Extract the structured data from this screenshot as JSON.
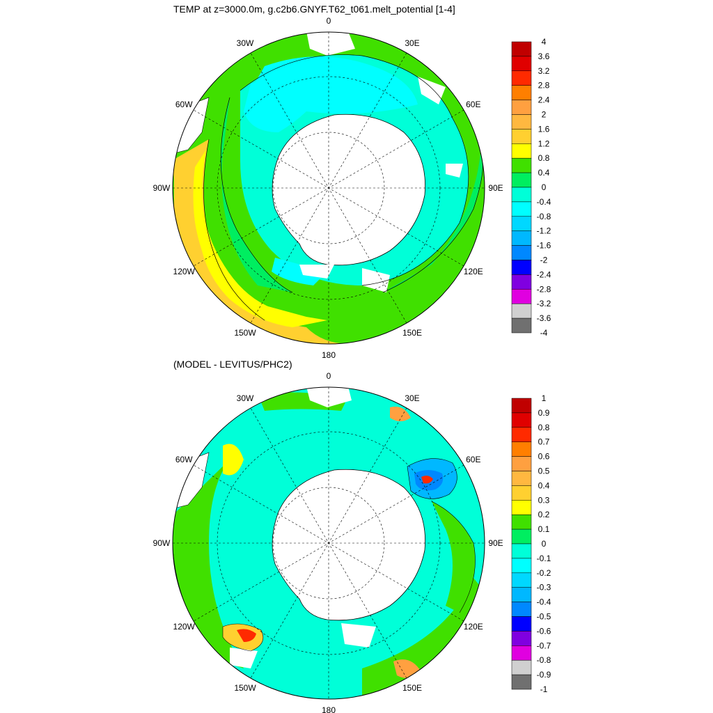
{
  "panels": [
    {
      "title": "TEMP at z=3000.0m, g.c2b6.GNYF.T62_t061.melt_potential [1-4]",
      "colorbar": {
        "labels": [
          "4",
          "3.6",
          "3.2",
          "2.8",
          "2.4",
          "2",
          "1.6",
          "1.2",
          "0.8",
          "0.4",
          "0",
          "-0.4",
          "-0.8",
          "-1.2",
          "-1.6",
          "-2",
          "-2.4",
          "-2.8",
          "-3.2",
          "-3.6",
          "-4"
        ],
        "colors": [
          "#c00000",
          "#e00000",
          "#ff2a00",
          "#ff7f00",
          "#ffa040",
          "#ffb840",
          "#ffd030",
          "#ffff00",
          "#40e000",
          "#00ee60",
          "#00ffd8",
          "#00ffff",
          "#00d8ff",
          "#00b8ff",
          "#0088ff",
          "#0000ff",
          "#8000e0",
          "#e000e0",
          "#d0d0d0",
          "#707070"
        ]
      }
    },
    {
      "title": "(MODEL - LEVITUS/PHC2)",
      "colorbar": {
        "labels": [
          "1",
          "0.9",
          "0.8",
          "0.7",
          "0.6",
          "0.5",
          "0.4",
          "0.3",
          "0.2",
          "0.1",
          "0",
          "-0.1",
          "-0.2",
          "-0.3",
          "-0.4",
          "-0.5",
          "-0.6",
          "-0.7",
          "-0.8",
          "-0.9",
          "-1"
        ],
        "colors": [
          "#c00000",
          "#e00000",
          "#ff2a00",
          "#ff7f00",
          "#ffa040",
          "#ffb840",
          "#ffd030",
          "#ffff00",
          "#40e000",
          "#00ee60",
          "#00ffd8",
          "#00ffff",
          "#00d8ff",
          "#00b8ff",
          "#0088ff",
          "#0000ff",
          "#8000e0",
          "#e000e0",
          "#d0d0d0",
          "#707070"
        ]
      }
    }
  ],
  "longitude_labels": [
    "0",
    "30E",
    "60E",
    "90E",
    "120E",
    "150E",
    "180",
    "150W",
    "120W",
    "90W",
    "60W",
    "30W"
  ],
  "colors": {
    "land": "#ffffff",
    "outline": "#000000"
  }
}
